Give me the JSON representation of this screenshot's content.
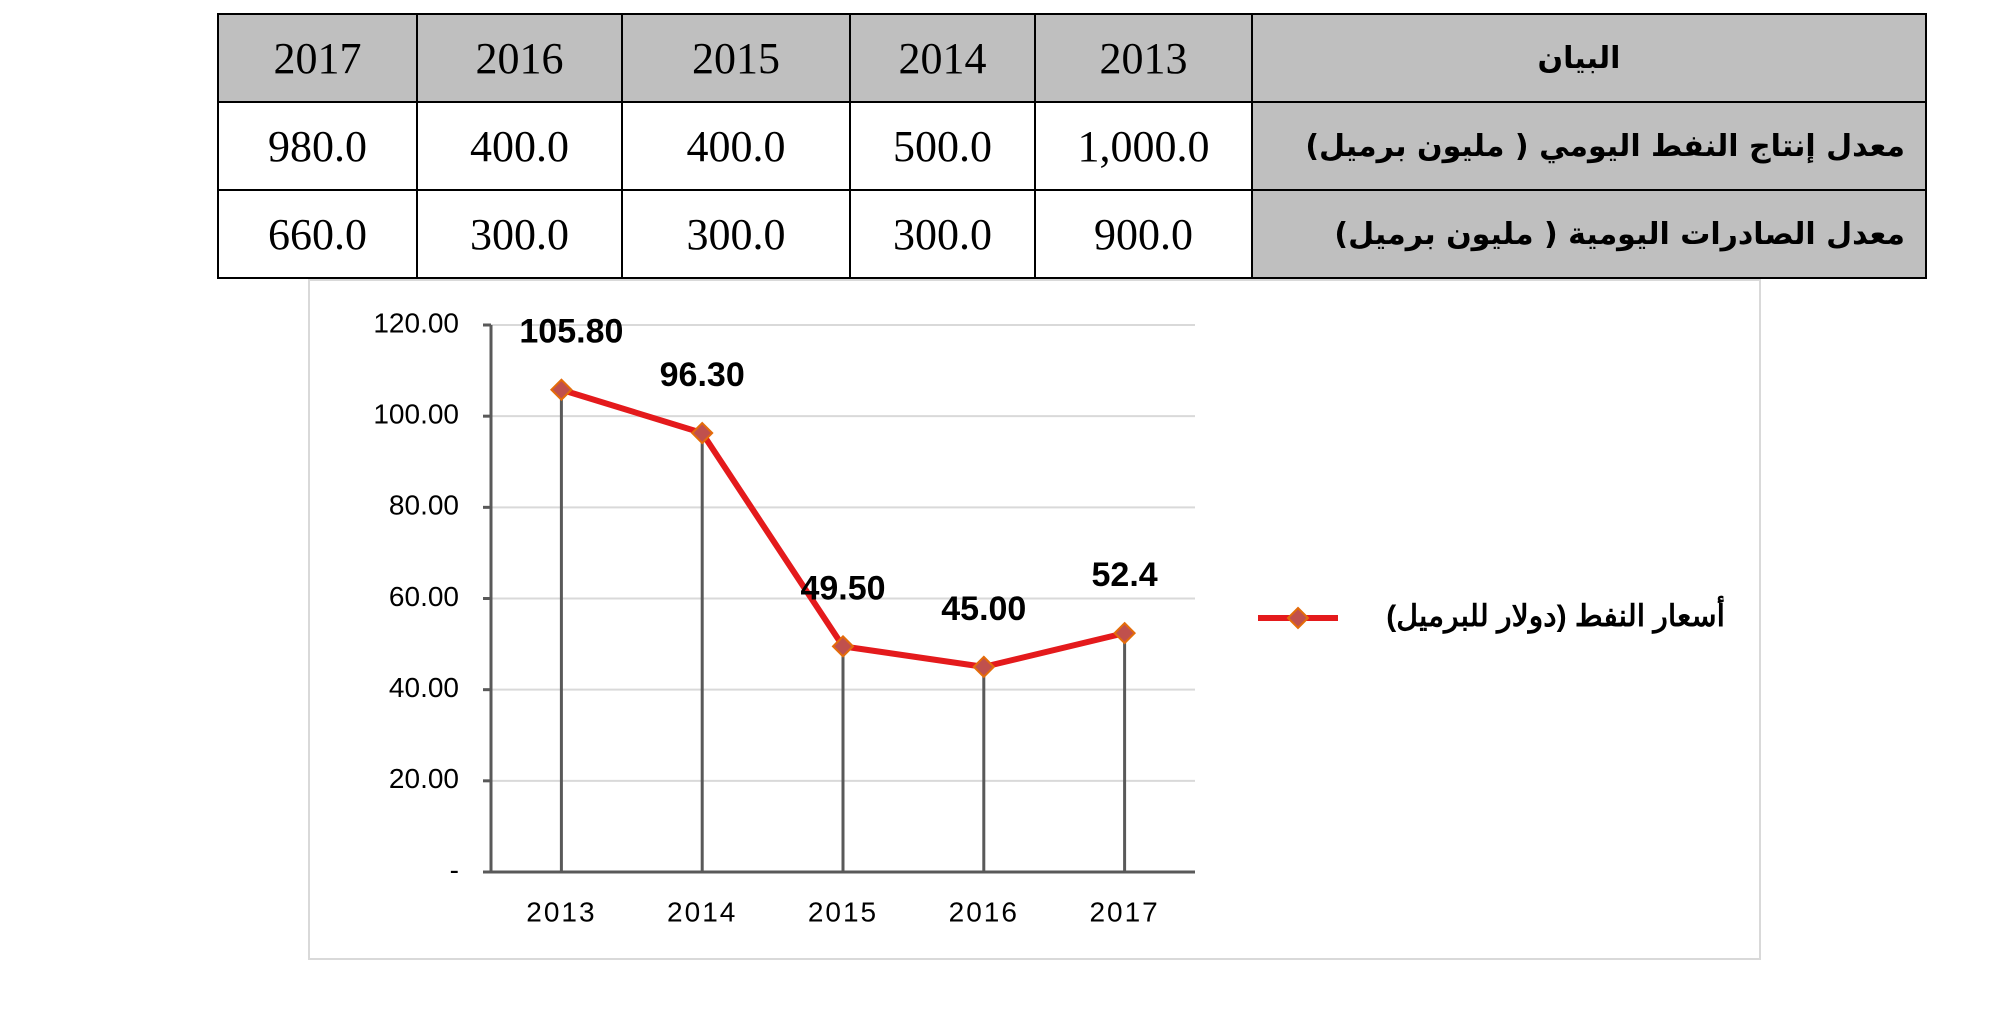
{
  "table": {
    "header": [
      "البيان",
      "2013",
      "2014",
      "2015",
      "2016",
      "2017"
    ],
    "rows": [
      [
        "معدل إنتاج النفط اليومي ( مليون برميل)",
        "1,000.0",
        "500.0",
        "400.0",
        "400.0",
        "980.0"
      ],
      [
        "معدل الصادرات اليومية ( مليون برميل)",
        "900.0",
        "300.0",
        "300.0",
        "300.0",
        "660.0"
      ]
    ]
  },
  "chart_data": {
    "type": "line",
    "categories": [
      "2013",
      "2014",
      "2015",
      "2016",
      "2017"
    ],
    "series": [
      {
        "name": "أسعار النفط (دولار للبرميل)",
        "color": "#e41a1c",
        "values": [
          105.8,
          96.3,
          49.5,
          45.0,
          52.4
        ],
        "value_labels": [
          "105.80",
          "96.30",
          "49.50",
          "45.00",
          "52.4"
        ]
      }
    ],
    "ylim": [
      0,
      120
    ],
    "yticks": [
      {
        "value": 0,
        "label": "-"
      },
      {
        "value": 20,
        "label": "20.00"
      },
      {
        "value": 40,
        "label": "40.00"
      },
      {
        "value": 60,
        "label": "60.00"
      },
      {
        "value": 80,
        "label": "80.00"
      },
      {
        "value": 100,
        "label": "100.00"
      },
      {
        "value": 120,
        "label": "120.00"
      }
    ],
    "grid": true,
    "legend": "right"
  }
}
